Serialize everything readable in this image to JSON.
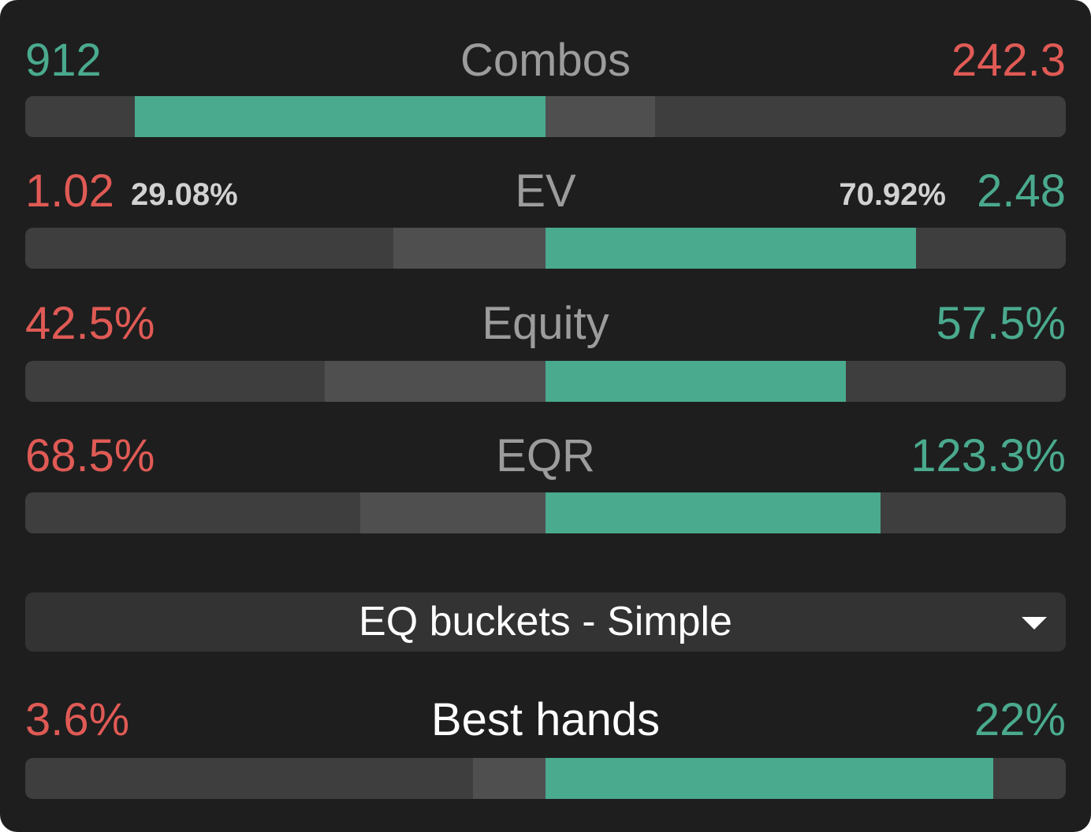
{
  "metrics": [
    {
      "id": "combos",
      "title": "Combos",
      "left_value": "912",
      "right_value": "242.3",
      "left_color": "green",
      "right_color": "red",
      "bar": {
        "teal_from": 0.105,
        "teal_to": 0.5,
        "grey_from": 0.5,
        "grey_to": 0.605
      }
    },
    {
      "id": "ev",
      "title": "EV",
      "left_value": "1.02",
      "left_pct": "29.08%",
      "right_value": "2.48",
      "right_pct": "70.92%",
      "left_color": "red",
      "right_color": "green",
      "bar": {
        "grey_from": 0.354,
        "grey_to": 0.5,
        "teal_from": 0.5,
        "teal_to": 0.856
      }
    },
    {
      "id": "equity",
      "title": "Equity",
      "left_value": "42.5%",
      "right_value": "57.5%",
      "left_color": "red",
      "right_color": "green",
      "bar": {
        "grey_from": 0.288,
        "grey_to": 0.5,
        "teal_from": 0.5,
        "teal_to": 0.789
      }
    },
    {
      "id": "eqr",
      "title": "EQR",
      "left_value": "68.5%",
      "right_value": "123.3%",
      "left_color": "red",
      "right_color": "green",
      "bar": {
        "grey_from": 0.322,
        "grey_to": 0.5,
        "teal_from": 0.5,
        "teal_to": 0.822
      }
    }
  ],
  "dropdown": {
    "selected": "EQ buckets - Simple"
  },
  "best_hands": {
    "title": "Best hands",
    "left_value": "3.6%",
    "right_value": "22%",
    "bar": {
      "grey_from": 0.43,
      "grey_to": 0.5,
      "teal_from": 0.5,
      "teal_to": 0.93
    }
  },
  "colors": {
    "background": "#1e1e1e",
    "track": "#3e3e3e",
    "grey_segment": "#4f4f4f",
    "teal": "#4aaa8e",
    "red": "#e05a55",
    "title_grey": "#9c9c9c"
  }
}
